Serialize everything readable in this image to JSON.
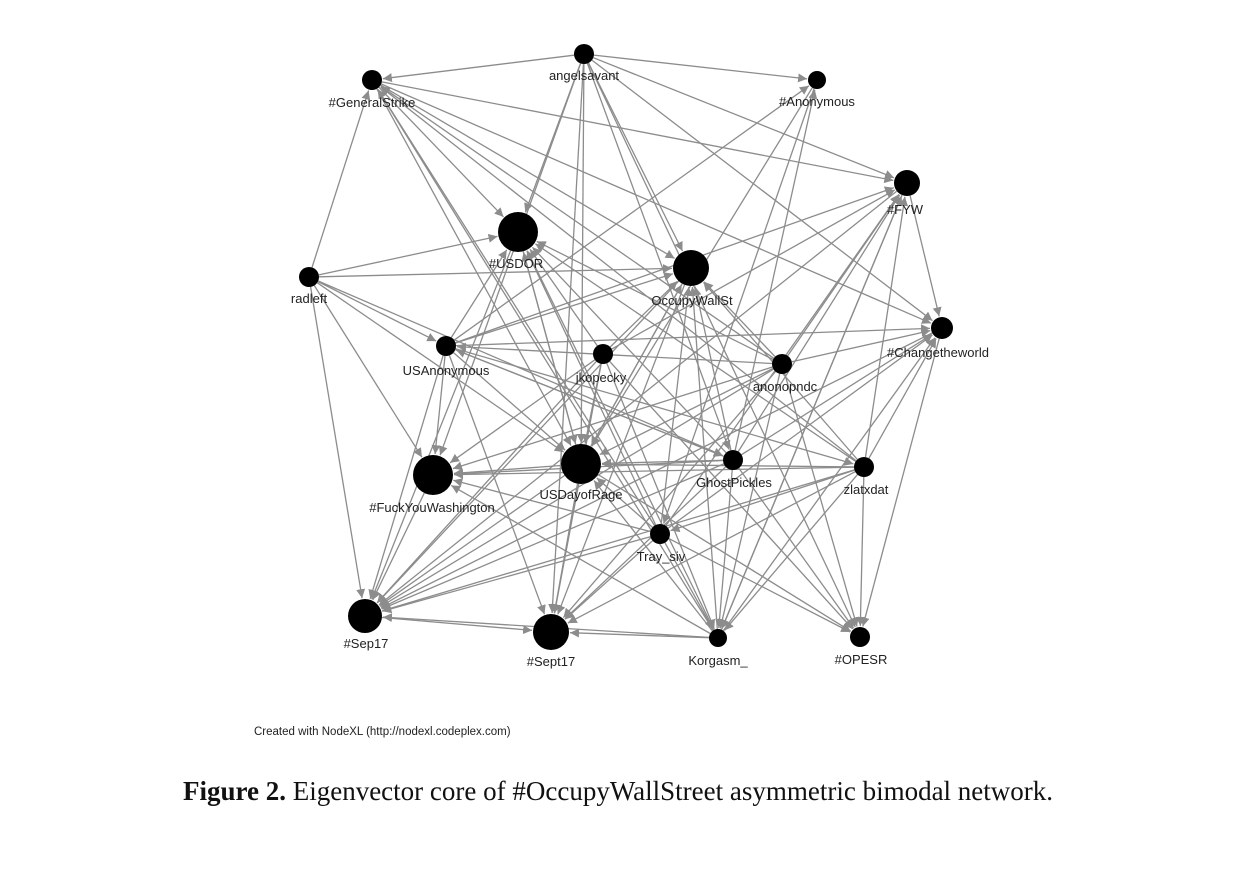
{
  "colors": {
    "edge": "#8c8c8c",
    "node": "#000000",
    "label": "#222222"
  },
  "credit": "Created with NodeXL (http://nodexl.codeplex.com)",
  "caption": {
    "label": "Figure 2.",
    "text": "Eigenvector core of #OccupyWallStreet asymmetric bimodal network."
  },
  "nodes": [
    {
      "id": "angelsavant",
      "label": "angelsavant"
    },
    {
      "id": "generalstrike",
      "label": "#GeneralStrike"
    },
    {
      "id": "anonymous",
      "label": "#Anonymous"
    },
    {
      "id": "fyw",
      "label": "#FYW"
    },
    {
      "id": "usdor",
      "label": "#USDOR"
    },
    {
      "id": "occupywallst",
      "label": "OccupyWallSt"
    },
    {
      "id": "radleft",
      "label": "radleft"
    },
    {
      "id": "changetheworld",
      "label": "#Changetheworld"
    },
    {
      "id": "usanonymous",
      "label": "USAnonymous"
    },
    {
      "id": "jkopecky",
      "label": "jkopecky"
    },
    {
      "id": "anonopndc",
      "label": "anonopndc"
    },
    {
      "id": "fuckyouwashington",
      "label": "#FuckYouWashington"
    },
    {
      "id": "usdayofrage",
      "label": "USDayofRage"
    },
    {
      "id": "ghostpickles",
      "label": "GhostPickles"
    },
    {
      "id": "zlatxdat",
      "label": "zlatxdat"
    },
    {
      "id": "tray_siv",
      "label": "Tray_siv"
    },
    {
      "id": "sep17",
      "label": "#Sep17"
    },
    {
      "id": "sept17",
      "label": "#Sept17"
    },
    {
      "id": "korgasm",
      "label": "Korgasm_"
    },
    {
      "id": "opesr",
      "label": "#OPESR"
    }
  ],
  "edges": [
    [
      "angelsavant",
      "generalstrike"
    ],
    [
      "angelsavant",
      "anonymous"
    ],
    [
      "angelsavant",
      "fyw"
    ],
    [
      "angelsavant",
      "usdor"
    ],
    [
      "angelsavant",
      "occupywallst"
    ],
    [
      "angelsavant",
      "usdayofrage"
    ],
    [
      "angelsavant",
      "sept17"
    ],
    [
      "angelsavant",
      "fuckyouwashington"
    ],
    [
      "angelsavant",
      "changetheworld"
    ],
    [
      "angelsavant",
      "opesr"
    ],
    [
      "angelsavant",
      "ghostpickles"
    ],
    [
      "radleft",
      "generalstrike"
    ],
    [
      "radleft",
      "usdor"
    ],
    [
      "radleft",
      "occupywallst"
    ],
    [
      "radleft",
      "usanonymous"
    ],
    [
      "radleft",
      "fuckyouwashington"
    ],
    [
      "radleft",
      "sep17"
    ],
    [
      "radleft",
      "usdayofrage"
    ],
    [
      "radleft",
      "ghostpickles"
    ],
    [
      "usanonymous",
      "usdor"
    ],
    [
      "usanonymous",
      "occupywallst"
    ],
    [
      "usanonymous",
      "fyw"
    ],
    [
      "usanonymous",
      "changetheworld"
    ],
    [
      "usanonymous",
      "fuckyouwashington"
    ],
    [
      "usanonymous",
      "sep17"
    ],
    [
      "usanonymous",
      "sept17"
    ],
    [
      "usanonymous",
      "usdayofrage"
    ],
    [
      "usanonymous",
      "ghostpickles"
    ],
    [
      "usanonymous",
      "anonymous"
    ],
    [
      "usanonymous",
      "zlatxdat"
    ],
    [
      "jkopecky",
      "usdor"
    ],
    [
      "jkopecky",
      "occupywallst"
    ],
    [
      "jkopecky",
      "fuckyouwashington"
    ],
    [
      "jkopecky",
      "usdayofrage"
    ],
    [
      "jkopecky",
      "sept17"
    ],
    [
      "jkopecky",
      "korgasm"
    ],
    [
      "jkopecky",
      "fyw"
    ],
    [
      "jkopecky",
      "sep17"
    ],
    [
      "jkopecky",
      "opesr"
    ],
    [
      "anonopndc",
      "usdor"
    ],
    [
      "anonopndc",
      "occupywallst"
    ],
    [
      "anonopndc",
      "fyw"
    ],
    [
      "anonopndc",
      "changetheworld"
    ],
    [
      "anonopndc",
      "usdayofrage"
    ],
    [
      "anonopndc",
      "fuckyouwashington"
    ],
    [
      "anonopndc",
      "sept17"
    ],
    [
      "anonopndc",
      "korgasm"
    ],
    [
      "anonopndc",
      "opesr"
    ],
    [
      "anonopndc",
      "usanonymous"
    ],
    [
      "anonopndc",
      "sep17"
    ],
    [
      "anonopndc",
      "generalstrike"
    ],
    [
      "ghostpickles",
      "usdor"
    ],
    [
      "ghostpickles",
      "occupywallst"
    ],
    [
      "ghostpickles",
      "fyw"
    ],
    [
      "ghostpickles",
      "changetheworld"
    ],
    [
      "ghostpickles",
      "usdayofrage"
    ],
    [
      "ghostpickles",
      "fuckyouwashington"
    ],
    [
      "ghostpickles",
      "sep17"
    ],
    [
      "ghostpickles",
      "sept17"
    ],
    [
      "ghostpickles",
      "korgasm"
    ],
    [
      "ghostpickles",
      "opesr"
    ],
    [
      "ghostpickles",
      "usanonymous"
    ],
    [
      "ghostpickles",
      "anonymous"
    ],
    [
      "zlatxdat",
      "fyw"
    ],
    [
      "zlatxdat",
      "changetheworld"
    ],
    [
      "zlatxdat",
      "occupywallst"
    ],
    [
      "zlatxdat",
      "usdayofrage"
    ],
    [
      "zlatxdat",
      "fuckyouwashington"
    ],
    [
      "zlatxdat",
      "sep17"
    ],
    [
      "zlatxdat",
      "sept17"
    ],
    [
      "zlatxdat",
      "korgasm"
    ],
    [
      "zlatxdat",
      "opesr"
    ],
    [
      "zlatxdat",
      "usdor"
    ],
    [
      "zlatxdat",
      "tray_siv"
    ],
    [
      "zlatxdat",
      "generalstrike"
    ],
    [
      "tray_siv",
      "usdor"
    ],
    [
      "tray_siv",
      "occupywallst"
    ],
    [
      "tray_siv",
      "fyw"
    ],
    [
      "tray_siv",
      "changetheworld"
    ],
    [
      "tray_siv",
      "usdayofrage"
    ],
    [
      "tray_siv",
      "sep17"
    ],
    [
      "tray_siv",
      "sept17"
    ],
    [
      "tray_siv",
      "korgasm"
    ],
    [
      "tray_siv",
      "opesr"
    ],
    [
      "tray_siv",
      "fuckyouwashington"
    ],
    [
      "tray_siv",
      "generalstrike"
    ],
    [
      "korgasm",
      "sept17"
    ],
    [
      "korgasm",
      "usdayofrage"
    ],
    [
      "korgasm",
      "usdor"
    ],
    [
      "korgasm",
      "occupywallst"
    ],
    [
      "korgasm",
      "fyw"
    ],
    [
      "korgasm",
      "sep17"
    ],
    [
      "korgasm",
      "fuckyouwashington"
    ],
    [
      "korgasm",
      "changetheworld"
    ],
    [
      "korgasm",
      "generalstrike"
    ],
    [
      "generalstrike",
      "occupywallst"
    ],
    [
      "generalstrike",
      "usdor"
    ],
    [
      "generalstrike",
      "fyw"
    ],
    [
      "generalstrike",
      "usdayofrage"
    ],
    [
      "generalstrike",
      "changetheworld"
    ],
    [
      "usdayofrage",
      "sep17"
    ],
    [
      "usdayofrage",
      "sept17"
    ],
    [
      "usdayofrage",
      "fuckyouwashington"
    ],
    [
      "usdayofrage",
      "usdor"
    ],
    [
      "usdayofrage",
      "occupywallst"
    ],
    [
      "usdayofrage",
      "opesr"
    ],
    [
      "fuckyouwashington",
      "sep17"
    ],
    [
      "usdor",
      "sep17"
    ],
    [
      "usdor",
      "usdayofrage"
    ],
    [
      "occupywallst",
      "sept17"
    ],
    [
      "occupywallst",
      "sep17"
    ],
    [
      "occupywallst",
      "usdayofrage"
    ],
    [
      "anonymous",
      "usdayofrage"
    ],
    [
      "anonymous",
      "tray_siv"
    ],
    [
      "fyw",
      "changetheworld"
    ],
    [
      "changetheworld",
      "opesr"
    ],
    [
      "changetheworld",
      "sep17"
    ],
    [
      "fyw",
      "korgasm"
    ],
    [
      "fyw",
      "sep17"
    ],
    [
      "sep17",
      "sept17"
    ]
  ]
}
